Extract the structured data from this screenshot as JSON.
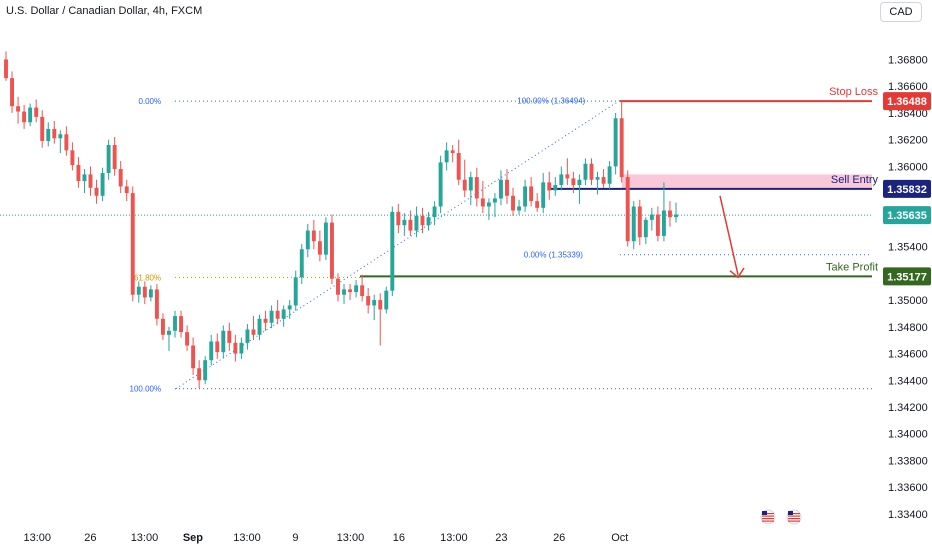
{
  "header": {
    "title": "U.S. Dollar / Canadian Dollar, 4h, FXCM",
    "currency_button": "CAD"
  },
  "chart_data": {
    "type": "candlestick",
    "ylim": [
      1.3328,
      1.3708
    ],
    "y_ticks": [
      "1.36800",
      "1.36600",
      "1.36400",
      "1.36200",
      "1.36000",
      "1.35800",
      "1.35400",
      "1.35000",
      "1.34800",
      "1.34600",
      "1.34400",
      "1.34200",
      "1.34000",
      "1.33800",
      "1.33600",
      "1.33400"
    ],
    "x_ticks": [
      {
        "label": "13:00",
        "x": 0.04
      },
      {
        "label": "26",
        "x": 0.097
      },
      {
        "label": "13:00",
        "x": 0.155
      },
      {
        "label": "Sep",
        "x": 0.207
      },
      {
        "label": "13:00",
        "x": 0.265
      },
      {
        "label": "9",
        "x": 0.317
      },
      {
        "label": "13:00",
        "x": 0.376
      },
      {
        "label": "16",
        "x": 0.428
      },
      {
        "label": "13:00",
        "x": 0.487
      },
      {
        "label": "23",
        "x": 0.538
      },
      {
        "label": "26",
        "x": 0.6
      },
      {
        "label": "Oct",
        "x": 0.665
      }
    ],
    "price_labels": [
      {
        "name": "Stop Loss",
        "value": "1.36488",
        "price": 1.36488,
        "color": "#e53935"
      },
      {
        "name": "Sell Entry",
        "value": "1.35832",
        "price": 1.35832,
        "color": "#1a237e"
      },
      {
        "name": "current",
        "value": "1.35635",
        "price": 1.35635,
        "color": "#26a69a"
      },
      {
        "name": "Take Profit",
        "value": "1.35177",
        "price": 1.35177,
        "color": "#33691e"
      }
    ],
    "fib_labels": [
      {
        "text": "0.00%",
        "price": 1.36488,
        "x": 0.145
      },
      {
        "text": "61.80%",
        "price": 1.3517,
        "x": 0.145
      },
      {
        "text": "100.00%",
        "price": 1.34337,
        "x": 0.145
      },
      {
        "text": "100.00% (1.36494)",
        "price": 1.36494,
        "x": 0.555
      },
      {
        "text": "0.00% (1.35339)",
        "price": 1.35339,
        "x": 0.562
      }
    ],
    "candles": [
      [
        1.368,
        1.3686,
        1.3664,
        1.3666
      ],
      [
        1.3666,
        1.3671,
        1.364,
        1.3645
      ],
      [
        1.3645,
        1.3652,
        1.3632,
        1.3641
      ],
      [
        1.3641,
        1.3646,
        1.3628,
        1.3633
      ],
      [
        1.3633,
        1.3647,
        1.363,
        1.3644
      ],
      [
        1.3644,
        1.365,
        1.3633,
        1.3637
      ],
      [
        1.3637,
        1.3642,
        1.3614,
        1.3619
      ],
      [
        1.3619,
        1.3633,
        1.3615,
        1.3628
      ],
      [
        1.3628,
        1.3634,
        1.3617,
        1.3621
      ],
      [
        1.3621,
        1.3627,
        1.361,
        1.3624
      ],
      [
        1.3624,
        1.363,
        1.3608,
        1.3612
      ],
      [
        1.3612,
        1.3618,
        1.3597,
        1.3601
      ],
      [
        1.3601,
        1.3607,
        1.3584,
        1.3589
      ],
      [
        1.3589,
        1.3598,
        1.358,
        1.3594
      ],
      [
        1.3594,
        1.36,
        1.3578,
        1.3584
      ],
      [
        1.3584,
        1.359,
        1.3572,
        1.3578
      ],
      [
        1.3578,
        1.3599,
        1.3574,
        1.3595
      ],
      [
        1.3595,
        1.362,
        1.359,
        1.3616
      ],
      [
        1.3616,
        1.3622,
        1.3593,
        1.3598
      ],
      [
        1.3598,
        1.3604,
        1.358,
        1.3585
      ],
      [
        1.3585,
        1.359,
        1.3574,
        1.358
      ],
      [
        1.358,
        1.3585,
        1.3499,
        1.3504
      ],
      [
        1.3504,
        1.3514,
        1.3498,
        1.351
      ],
      [
        1.351,
        1.3514,
        1.3497,
        1.3502
      ],
      [
        1.3502,
        1.3511,
        1.3499,
        1.3508
      ],
      [
        1.3508,
        1.3512,
        1.3481,
        1.3486
      ],
      [
        1.3486,
        1.349,
        1.347,
        1.3474
      ],
      [
        1.3474,
        1.348,
        1.3462,
        1.3477
      ],
      [
        1.3477,
        1.3492,
        1.3472,
        1.3488
      ],
      [
        1.3488,
        1.3492,
        1.3472,
        1.3476
      ],
      [
        1.3476,
        1.3481,
        1.3462,
        1.3466
      ],
      [
        1.3466,
        1.3472,
        1.3444,
        1.3449
      ],
      [
        1.3449,
        1.3455,
        1.3434,
        1.344
      ],
      [
        1.344,
        1.3458,
        1.3437,
        1.3455
      ],
      [
        1.3455,
        1.3474,
        1.3451,
        1.3469
      ],
      [
        1.3469,
        1.3475,
        1.3456,
        1.3461
      ],
      [
        1.3461,
        1.3481,
        1.3457,
        1.3477
      ],
      [
        1.3477,
        1.3483,
        1.3462,
        1.3468
      ],
      [
        1.3468,
        1.3474,
        1.3454,
        1.346
      ],
      [
        1.346,
        1.3472,
        1.3456,
        1.3468
      ],
      [
        1.3468,
        1.3482,
        1.3463,
        1.3478
      ],
      [
        1.3478,
        1.3488,
        1.347,
        1.3474
      ],
      [
        1.3474,
        1.3489,
        1.347,
        1.3486
      ],
      [
        1.3486,
        1.3492,
        1.3477,
        1.3483
      ],
      [
        1.3483,
        1.3496,
        1.3479,
        1.3492
      ],
      [
        1.3492,
        1.35,
        1.3482,
        1.3486
      ],
      [
        1.3486,
        1.3496,
        1.348,
        1.3493
      ],
      [
        1.3493,
        1.35,
        1.3486,
        1.3496
      ],
      [
        1.3496,
        1.3522,
        1.3492,
        1.3517
      ],
      [
        1.3517,
        1.3542,
        1.3512,
        1.3538
      ],
      [
        1.3538,
        1.3557,
        1.3532,
        1.3552
      ],
      [
        1.3552,
        1.356,
        1.3538,
        1.3544
      ],
      [
        1.3544,
        1.3552,
        1.3529,
        1.3534
      ],
      [
        1.3534,
        1.3562,
        1.353,
        1.3558
      ],
      [
        1.3558,
        1.3564,
        1.3512,
        1.3516
      ],
      [
        1.3516,
        1.352,
        1.3499,
        1.3504
      ],
      [
        1.3504,
        1.3512,
        1.3497,
        1.3508
      ],
      [
        1.3508,
        1.3512,
        1.35,
        1.3506
      ],
      [
        1.3506,
        1.3515,
        1.3502,
        1.3511
      ],
      [
        1.3511,
        1.3519,
        1.3499,
        1.3503
      ],
      [
        1.3503,
        1.3509,
        1.349,
        1.3496
      ],
      [
        1.3496,
        1.3504,
        1.3485,
        1.35
      ],
      [
        1.35,
        1.3505,
        1.3466,
        1.3493
      ],
      [
        1.3493,
        1.351,
        1.349,
        1.3507
      ],
      [
        1.3507,
        1.357,
        1.3503,
        1.3566
      ],
      [
        1.3566,
        1.3572,
        1.355,
        1.3556
      ],
      [
        1.3556,
        1.3565,
        1.3548,
        1.356
      ],
      [
        1.356,
        1.3567,
        1.3548,
        1.3552
      ],
      [
        1.3552,
        1.357,
        1.3547,
        1.3563
      ],
      [
        1.3563,
        1.3569,
        1.355,
        1.3556
      ],
      [
        1.3556,
        1.3566,
        1.3552,
        1.3562
      ],
      [
        1.3562,
        1.3574,
        1.3556,
        1.357
      ],
      [
        1.357,
        1.3608,
        1.3565,
        1.3603
      ],
      [
        1.3603,
        1.3618,
        1.3597,
        1.3612
      ],
      [
        1.3612,
        1.3616,
        1.3603,
        1.361
      ],
      [
        1.361,
        1.362,
        1.3586,
        1.359
      ],
      [
        1.359,
        1.3605,
        1.3577,
        1.3582
      ],
      [
        1.3582,
        1.3596,
        1.3571,
        1.3592
      ],
      [
        1.3592,
        1.3599,
        1.357,
        1.3576
      ],
      [
        1.3576,
        1.3589,
        1.3565,
        1.357
      ],
      [
        1.357,
        1.3576,
        1.356,
        1.3573
      ],
      [
        1.3573,
        1.358,
        1.3562,
        1.3576
      ],
      [
        1.3576,
        1.3597,
        1.3571,
        1.359
      ],
      [
        1.359,
        1.3598,
        1.3572,
        1.3578
      ],
      [
        1.3578,
        1.3584,
        1.3563,
        1.3567
      ],
      [
        1.3567,
        1.3575,
        1.3564,
        1.357
      ],
      [
        1.357,
        1.359,
        1.3566,
        1.3585
      ],
      [
        1.3585,
        1.3592,
        1.357,
        1.3574
      ],
      [
        1.3574,
        1.358,
        1.3566,
        1.3569
      ],
      [
        1.3569,
        1.3595,
        1.3565,
        1.3588
      ],
      [
        1.3588,
        1.3596,
        1.3575,
        1.3582
      ],
      [
        1.3582,
        1.3592,
        1.3578,
        1.3586
      ],
      [
        1.3586,
        1.36,
        1.3582,
        1.3594
      ],
      [
        1.3594,
        1.3606,
        1.3586,
        1.3591
      ],
      [
        1.3591,
        1.3596,
        1.358,
        1.3586
      ],
      [
        1.3586,
        1.3594,
        1.3572,
        1.359
      ],
      [
        1.359,
        1.3606,
        1.3586,
        1.3602
      ],
      [
        1.3602,
        1.3606,
        1.3586,
        1.359
      ],
      [
        1.359,
        1.3596,
        1.3579,
        1.3592
      ],
      [
        1.3592,
        1.3598,
        1.3584,
        1.3587
      ],
      [
        1.3587,
        1.3604,
        1.3583,
        1.36
      ],
      [
        1.36,
        1.364,
        1.3594,
        1.3636
      ],
      [
        1.3636,
        1.3649,
        1.3588,
        1.3592
      ],
      [
        1.3592,
        1.3597,
        1.354,
        1.3544
      ],
      [
        1.3544,
        1.3574,
        1.3538,
        1.357
      ],
      [
        1.357,
        1.3575,
        1.3541,
        1.3547
      ],
      [
        1.3547,
        1.3562,
        1.3542,
        1.356
      ],
      [
        1.356,
        1.3569,
        1.3552,
        1.3564
      ],
      [
        1.3564,
        1.357,
        1.3544,
        1.3548
      ],
      [
        1.3548,
        1.3588,
        1.3544,
        1.3567
      ],
      [
        1.3567,
        1.3574,
        1.3555,
        1.3562
      ],
      [
        1.3562,
        1.3573,
        1.3558,
        1.3564
      ]
    ]
  }
}
